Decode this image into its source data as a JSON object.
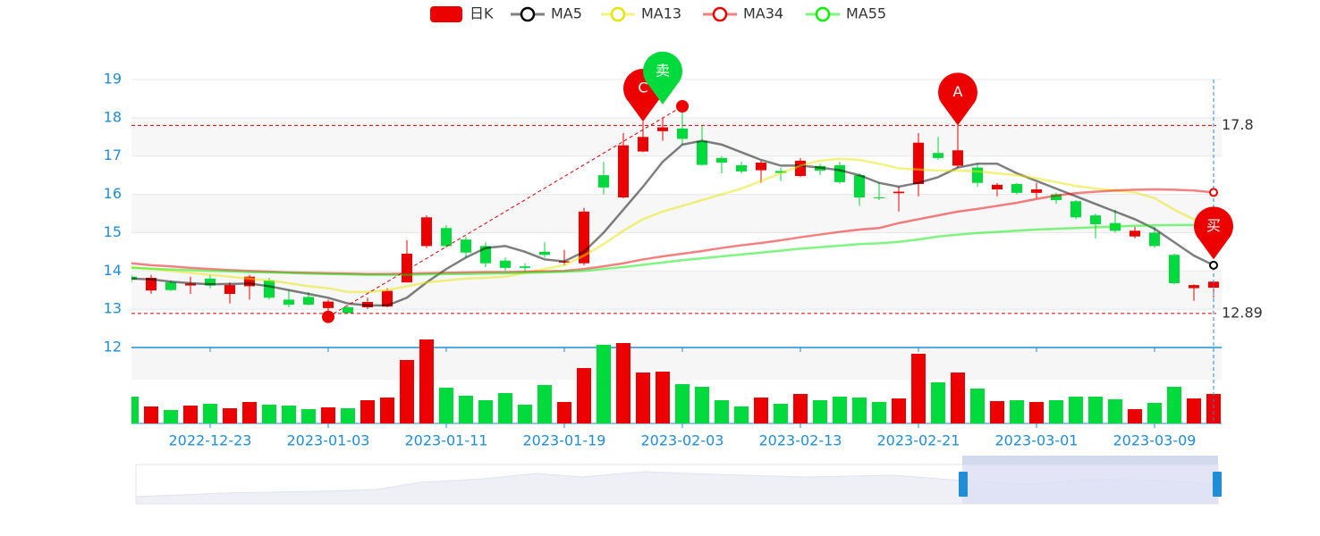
{
  "chart_data": {
    "type": "candlestick",
    "categories": [
      null,
      null,
      null,
      null,
      "2022-12-23",
      null,
      null,
      null,
      null,
      null,
      "2023-01-03",
      null,
      null,
      null,
      null,
      null,
      "2023-01-11",
      null,
      null,
      null,
      null,
      null,
      "2023-01-19",
      null,
      null,
      null,
      null,
      null,
      "2023-02-03",
      null,
      null,
      null,
      null,
      null,
      "2023-02-13",
      null,
      null,
      null,
      null,
      null,
      "2023-02-21",
      null,
      null,
      null,
      null,
      null,
      "2023-03-01",
      null,
      null,
      null,
      null,
      null,
      "2023-03-09",
      null,
      null,
      null
    ],
    "ylim": [
      12,
      19
    ],
    "yticks": [
      12,
      13,
      14,
      15,
      16,
      17,
      18,
      19
    ],
    "grid": true,
    "series": [
      {
        "name": "日K",
        "up_color": "#ec0000",
        "down_color": "#00da3c",
        "open": [
          13.85,
          13.49,
          13.7,
          13.62,
          13.8,
          13.4,
          13.6,
          13.75,
          13.25,
          13.32,
          13.03,
          13.05,
          13.05,
          13.07,
          13.7,
          14.65,
          15.12,
          14.82,
          14.65,
          14.27,
          14.12,
          14.5,
          14.22,
          14.2,
          16.5,
          15.92,
          17.12,
          17.65,
          17.72,
          17.39,
          16.95,
          16.76,
          16.63,
          16.61,
          16.48,
          16.74,
          16.76,
          16.5,
          15.92,
          16.03,
          16.27,
          17.08,
          16.75,
          16.7,
          16.13,
          16.27,
          16.04,
          16.0,
          15.82,
          15.45,
          15.25,
          14.9,
          15.0,
          14.42,
          13.55,
          13.56
        ],
        "close": [
          13.78,
          13.82,
          13.5,
          13.67,
          13.62,
          13.63,
          13.85,
          13.3,
          13.12,
          13.12,
          13.2,
          12.9,
          13.19,
          13.48,
          14.45,
          15.4,
          14.65,
          14.48,
          14.2,
          14.08,
          14.08,
          14.42,
          14.25,
          15.55,
          16.18,
          17.28,
          17.5,
          17.75,
          17.45,
          16.77,
          16.83,
          16.6,
          16.83,
          16.56,
          16.88,
          16.62,
          16.32,
          15.92,
          15.9,
          16.07,
          17.35,
          16.95,
          17.15,
          16.3,
          16.25,
          16.04,
          16.13,
          15.85,
          15.4,
          15.22,
          15.05,
          15.05,
          14.65,
          13.68,
          13.63,
          13.72
        ],
        "high": [
          13.9,
          13.9,
          13.75,
          13.85,
          13.9,
          13.7,
          13.9,
          13.82,
          13.5,
          13.45,
          13.25,
          13.1,
          13.3,
          13.55,
          14.8,
          15.45,
          15.2,
          14.9,
          14.75,
          14.35,
          14.2,
          14.75,
          14.55,
          15.65,
          16.85,
          17.6,
          17.9,
          18.0,
          18.3,
          17.8,
          17.0,
          16.85,
          16.88,
          16.7,
          16.95,
          16.8,
          16.85,
          16.55,
          16.3,
          16.2,
          17.6,
          17.5,
          17.8,
          16.8,
          16.3,
          16.3,
          16.3,
          16.05,
          15.85,
          15.5,
          15.6,
          15.15,
          15.15,
          14.45,
          13.65,
          13.75
        ],
        "low": [
          13.7,
          13.4,
          13.48,
          13.4,
          13.55,
          13.15,
          13.25,
          13.25,
          13.05,
          13.1,
          12.8,
          12.9,
          13.0,
          13.05,
          13.7,
          14.6,
          14.6,
          14.35,
          14.1,
          14.0,
          13.98,
          14.35,
          14.15,
          14.15,
          16.0,
          15.9,
          17.1,
          17.4,
          17.3,
          16.75,
          16.55,
          16.55,
          16.3,
          16.35,
          16.45,
          16.5,
          16.28,
          15.7,
          15.85,
          15.55,
          15.95,
          16.9,
          16.7,
          16.2,
          15.95,
          16.0,
          15.9,
          15.75,
          15.35,
          14.85,
          15.0,
          14.85,
          14.6,
          13.65,
          13.22,
          13.3
        ]
      },
      {
        "name": "MA5",
        "color": "#000000",
        "values": [
          13.8,
          13.78,
          13.72,
          13.68,
          13.65,
          13.66,
          13.67,
          13.6,
          13.5,
          13.4,
          13.3,
          13.15,
          13.1,
          13.1,
          13.3,
          13.7,
          14.05,
          14.35,
          14.6,
          14.65,
          14.5,
          14.3,
          14.25,
          14.5,
          15.0,
          15.6,
          16.2,
          16.85,
          17.3,
          17.4,
          17.3,
          17.1,
          16.9,
          16.75,
          16.75,
          16.7,
          16.63,
          16.5,
          16.3,
          16.2,
          16.3,
          16.45,
          16.7,
          16.8,
          16.8,
          16.55,
          16.35,
          16.15,
          15.95,
          15.75,
          15.55,
          15.35,
          15.1,
          14.75,
          14.4,
          14.15
        ]
      },
      {
        "name": "MA13",
        "color": "#e5e500",
        "values": [
          14.1,
          14.05,
          14.0,
          13.95,
          13.9,
          13.85,
          13.8,
          13.75,
          13.68,
          13.6,
          13.55,
          13.45,
          13.45,
          13.5,
          13.6,
          13.7,
          13.75,
          13.8,
          13.82,
          13.85,
          13.95,
          14.05,
          14.15,
          14.4,
          14.7,
          15.05,
          15.35,
          15.55,
          15.7,
          15.85,
          16.0,
          16.15,
          16.35,
          16.55,
          16.75,
          16.88,
          16.93,
          16.9,
          16.8,
          16.68,
          16.65,
          16.62,
          16.62,
          16.6,
          16.55,
          16.5,
          16.42,
          16.32,
          16.22,
          16.15,
          16.1,
          16.05,
          15.9,
          15.6,
          15.35,
          15.2
        ]
      },
      {
        "name": "MA34",
        "color": "#ee0000",
        "values": [
          14.2,
          14.15,
          14.12,
          14.08,
          14.05,
          14.02,
          14.0,
          13.98,
          13.96,
          13.95,
          13.94,
          13.93,
          13.92,
          13.92,
          13.93,
          13.94,
          13.95,
          13.96,
          13.97,
          13.97,
          13.98,
          13.99,
          14.0,
          14.05,
          14.12,
          14.2,
          14.3,
          14.38,
          14.45,
          14.52,
          14.6,
          14.67,
          14.73,
          14.8,
          14.88,
          14.95,
          15.02,
          15.08,
          15.12,
          15.25,
          15.35,
          15.45,
          15.55,
          15.62,
          15.7,
          15.78,
          15.88,
          15.97,
          16.03,
          16.07,
          16.1,
          16.12,
          16.13,
          16.12,
          16.1,
          16.05
        ]
      },
      {
        "name": "MA55",
        "color": "#00ee00",
        "values": [
          14.08,
          14.06,
          14.04,
          14.02,
          14.0,
          13.99,
          13.97,
          13.96,
          13.95,
          13.93,
          13.92,
          13.91,
          13.9,
          13.9,
          13.9,
          13.91,
          13.92,
          13.92,
          13.93,
          13.94,
          13.95,
          13.96,
          13.98,
          14.0,
          14.05,
          14.1,
          14.16,
          14.22,
          14.28,
          14.33,
          14.38,
          14.43,
          14.48,
          14.53,
          14.58,
          14.62,
          14.66,
          14.7,
          14.72,
          14.76,
          14.82,
          14.9,
          14.95,
          14.99,
          15.02,
          15.05,
          15.08,
          15.1,
          15.12,
          15.14,
          15.16,
          15.18,
          15.19,
          15.2,
          15.2,
          15.2
        ]
      }
    ],
    "volume": [
      30,
      19,
      15,
      20,
      22,
      17,
      24,
      21,
      20,
      16,
      18,
      17,
      26,
      29,
      71,
      94,
      40,
      31,
      26,
      34,
      21,
      43,
      24,
      62,
      88,
      90,
      57,
      58,
      44,
      41,
      26,
      19,
      29,
      22,
      33,
      26,
      30,
      29,
      24,
      28,
      78,
      46,
      57,
      39,
      25,
      26,
      24,
      26,
      30,
      30,
      27,
      16,
      23,
      41,
      28,
      33
    ],
    "mark_lines": [
      17.8,
      12.89
    ],
    "min_point": {
      "index": 10,
      "value": 12.8
    },
    "max_point": {
      "index": 28,
      "value": 18.3
    },
    "pins": [
      {
        "label": "C",
        "index": 26,
        "value": 17.9,
        "color": "#ec0000"
      },
      {
        "label": "卖",
        "index": 27,
        "value": 18.35,
        "color": "#00da3c"
      },
      {
        "label": "A",
        "index": 42,
        "value": 17.8,
        "color": "#ec0000"
      },
      {
        "label": "买",
        "index": 55,
        "value": 14.3,
        "color": "#ec0000"
      }
    ]
  }
}
